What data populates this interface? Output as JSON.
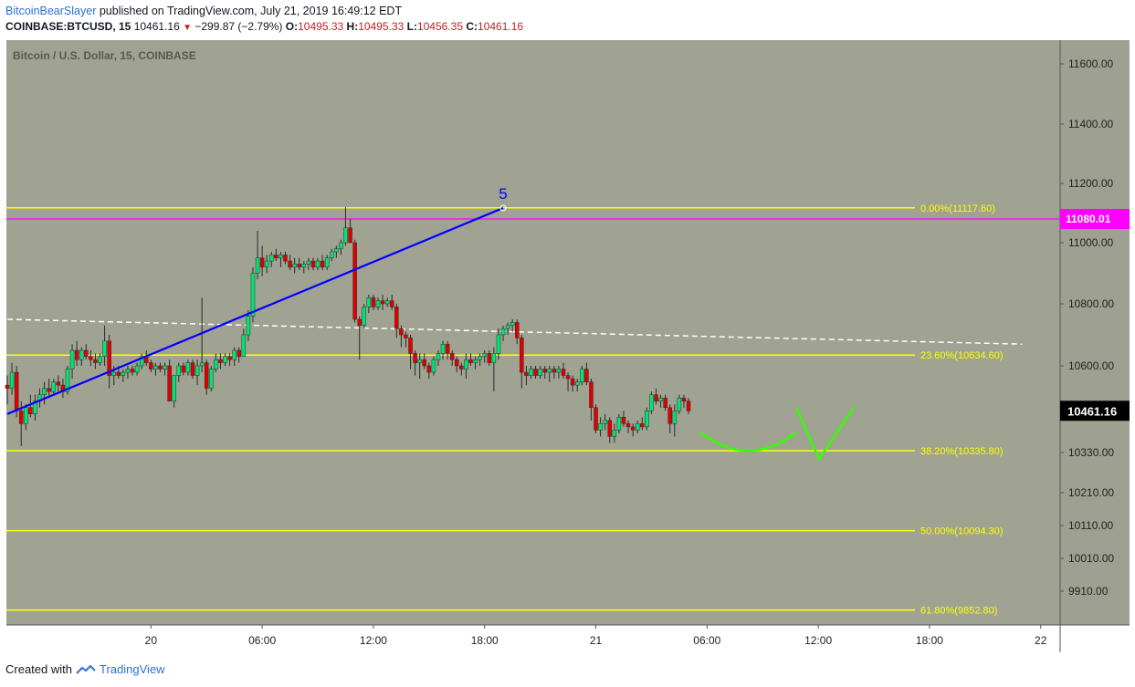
{
  "header": {
    "author": "BitcoinBearSlayer",
    "published": "published on TradingView.com, July 21, 2019 16:49:12 EDT",
    "symbol": "COINBASE:BTCUSD, 15",
    "last": "10461.16",
    "change": "−299.87 (−2.79%)",
    "o_label": "O:",
    "o_value": "10495.33",
    "h_label": "H:",
    "h_value": "10495.33",
    "l_label": "L:",
    "l_value": "10456.35",
    "c_label": "C:",
    "c_value": "10461.16"
  },
  "footer": {
    "created_with": "Created with",
    "brand": "TradingView"
  },
  "colors": {
    "background": "#a0a392",
    "up": "#00e676",
    "down": "#e00000",
    "fib": "#ffff00",
    "magenta": "#ff00ff",
    "trend": "#0000ff",
    "curve": "#33ff00",
    "dashed": "#ffffff",
    "axis_bg": "#9ea091"
  },
  "chart_data": {
    "type": "candlestick",
    "title": "Bitcoin / U.S. Dollar, 15, COINBASE",
    "y_axis_position": "right",
    "x_tick_labels": [
      "20",
      "06:00",
      "12:00",
      "18:00",
      "21",
      "06:00",
      "12:00",
      "18:00",
      "22"
    ],
    "y_tick_labels": [
      "11600.00",
      "11400.00",
      "11200.00",
      "11000.00",
      "10800.00",
      "10600.00",
      "10330.00",
      "10210.00",
      "10110.00",
      "10010.00",
      "9910.00"
    ],
    "price_label": "10461.16",
    "level_label": "11080.01",
    "wave_label": "5",
    "fib_levels": [
      {
        "label": "0.00%(11117.60)",
        "value": 11117.6
      },
      {
        "label": "23.60%(10634.60)",
        "value": 10634.6
      },
      {
        "label": "38.20%(10335.80)",
        "value": 10335.8
      },
      {
        "label": "50.00%(10094.30)",
        "value": 10094.3
      },
      {
        "label": "61.80%(9852.80)",
        "value": 9852.8
      }
    ],
    "horizontal_level": 11080.01,
    "trend_line": {
      "from": {
        "time": "19 Jul 16:15",
        "price": 10450
      },
      "to": {
        "time": "20 Jul 19:00",
        "price": 11117
      }
    },
    "dashed_line": {
      "from": {
        "time": "19 Jul 16:15",
        "price": 10750
      },
      "to": {
        "time": "21 Jul 23:00",
        "price": 10670
      }
    },
    "series": [
      {
        "name": "BTCUSD",
        "candles": [
          [
            10540,
            10570,
            10480,
            10530
          ],
          [
            10530,
            10610,
            10510,
            10580
          ],
          [
            10580,
            10600,
            10440,
            10460
          ],
          [
            10460,
            10490,
            10350,
            10420
          ],
          [
            10420,
            10480,
            10400,
            10470
          ],
          [
            10470,
            10510,
            10440,
            10450
          ],
          [
            10450,
            10510,
            10430,
            10490
          ],
          [
            10490,
            10530,
            10470,
            10510
          ],
          [
            10510,
            10550,
            10480,
            10530
          ],
          [
            10530,
            10560,
            10500,
            10520
          ],
          [
            10520,
            10560,
            10510,
            10550
          ],
          [
            10550,
            10570,
            10520,
            10540
          ],
          [
            10540,
            10560,
            10500,
            10520
          ],
          [
            10520,
            10600,
            10510,
            10590
          ],
          [
            10590,
            10670,
            10560,
            10650
          ],
          [
            10650,
            10680,
            10600,
            10620
          ],
          [
            10620,
            10660,
            10600,
            10650
          ],
          [
            10650,
            10670,
            10620,
            10630
          ],
          [
            10630,
            10650,
            10600,
            10620
          ],
          [
            10620,
            10640,
            10590,
            10610
          ],
          [
            10610,
            10640,
            10600,
            10630
          ],
          [
            10630,
            10730,
            10600,
            10680
          ],
          [
            10680,
            10700,
            10530,
            10570
          ],
          [
            10570,
            10600,
            10540,
            10580
          ],
          [
            10580,
            10600,
            10560,
            10570
          ],
          [
            10570,
            10590,
            10550,
            10580
          ],
          [
            10580,
            10600,
            10560,
            10590
          ],
          [
            10590,
            10600,
            10570,
            10580
          ],
          [
            10580,
            10610,
            10570,
            10600
          ],
          [
            10600,
            10640,
            10590,
            10630
          ],
          [
            10630,
            10650,
            10600,
            10610
          ],
          [
            10610,
            10620,
            10580,
            10590
          ],
          [
            10590,
            10610,
            10570,
            10600
          ],
          [
            10600,
            10610,
            10580,
            10590
          ],
          [
            10590,
            10610,
            10570,
            10600
          ],
          [
            10600,
            10620,
            10490,
            10490
          ],
          [
            10490,
            10570,
            10470,
            10570
          ],
          [
            10570,
            10610,
            10550,
            10600
          ],
          [
            10600,
            10610,
            10570,
            10580
          ],
          [
            10580,
            10620,
            10570,
            10610
          ],
          [
            10610,
            10620,
            10560,
            10570
          ],
          [
            10570,
            10620,
            10540,
            10600
          ],
          [
            10600,
            10820,
            10580,
            10610
          ],
          [
            10610,
            10620,
            10510,
            10530
          ],
          [
            10530,
            10600,
            10520,
            10590
          ],
          [
            10590,
            10640,
            10580,
            10620
          ],
          [
            10620,
            10640,
            10590,
            10610
          ],
          [
            10610,
            10640,
            10600,
            10630
          ],
          [
            10630,
            10640,
            10600,
            10620
          ],
          [
            10620,
            10660,
            10600,
            10650
          ],
          [
            10650,
            10660,
            10610,
            10630
          ],
          [
            10630,
            10720,
            10630,
            10700
          ],
          [
            10700,
            10780,
            10680,
            10760
          ],
          [
            10760,
            10920,
            10740,
            10900
          ],
          [
            10900,
            11040,
            10880,
            10950
          ],
          [
            10950,
            10990,
            10890,
            10920
          ],
          [
            10920,
            10960,
            10900,
            10940
          ],
          [
            10940,
            10970,
            10920,
            10960
          ],
          [
            10960,
            10980,
            10940,
            10950
          ],
          [
            10950,
            10970,
            10920,
            10960
          ],
          [
            10960,
            10970,
            10930,
            10940
          ],
          [
            10940,
            10960,
            10910,
            10920
          ],
          [
            10920,
            10950,
            10900,
            10930
          ],
          [
            10930,
            10950,
            10910,
            10920
          ],
          [
            10920,
            10940,
            10900,
            10930
          ],
          [
            10930,
            10950,
            10910,
            10940
          ],
          [
            10940,
            10950,
            10910,
            10920
          ],
          [
            10920,
            10950,
            10910,
            10940
          ],
          [
            10940,
            10960,
            10910,
            10920
          ],
          [
            10920,
            10960,
            10910,
            10950
          ],
          [
            10950,
            10980,
            10940,
            10970
          ],
          [
            10970,
            10990,
            10950,
            10980
          ],
          [
            10980,
            11010,
            10960,
            11000
          ],
          [
            11000,
            11120,
            10990,
            11050
          ],
          [
            11050,
            11080,
            11000,
            11000
          ],
          [
            11000,
            11010,
            10740,
            10750
          ],
          [
            10750,
            10760,
            10620,
            10730
          ],
          [
            10730,
            10800,
            10720,
            10790
          ],
          [
            10790,
            10830,
            10770,
            10820
          ],
          [
            10820,
            10830,
            10780,
            10790
          ],
          [
            10790,
            10820,
            10780,
            10810
          ],
          [
            10810,
            10830,
            10780,
            10800
          ],
          [
            10800,
            10820,
            10790,
            10810
          ],
          [
            10810,
            10830,
            10780,
            10790
          ],
          [
            10790,
            10800,
            10690,
            10720
          ],
          [
            10720,
            10730,
            10660,
            10700
          ],
          [
            10700,
            10710,
            10660,
            10690
          ],
          [
            10690,
            10700,
            10590,
            10640
          ],
          [
            10640,
            10650,
            10570,
            10610
          ],
          [
            10610,
            10640,
            10560,
            10620
          ],
          [
            10620,
            10640,
            10590,
            10600
          ],
          [
            10600,
            10610,
            10560,
            10580
          ],
          [
            10580,
            10630,
            10570,
            10620
          ],
          [
            10620,
            10650,
            10600,
            10640
          ],
          [
            10640,
            10680,
            10620,
            10670
          ],
          [
            10670,
            10680,
            10620,
            10640
          ],
          [
            10640,
            10650,
            10600,
            10620
          ],
          [
            10620,
            10630,
            10580,
            10600
          ],
          [
            10600,
            10610,
            10570,
            10590
          ],
          [
            10590,
            10640,
            10560,
            10620
          ],
          [
            10620,
            10640,
            10600,
            10610
          ],
          [
            10610,
            10630,
            10590,
            10620
          ],
          [
            10620,
            10640,
            10600,
            10630
          ],
          [
            10630,
            10650,
            10610,
            10640
          ],
          [
            10640,
            10650,
            10600,
            10610
          ],
          [
            10610,
            10660,
            10520,
            10640
          ],
          [
            10640,
            10720,
            10620,
            10700
          ],
          [
            10700,
            10730,
            10680,
            10720
          ],
          [
            10720,
            10740,
            10700,
            10730
          ],
          [
            10730,
            10750,
            10710,
            10740
          ],
          [
            10740,
            10750,
            10670,
            10690
          ],
          [
            10690,
            10700,
            10530,
            10580
          ],
          [
            10580,
            10600,
            10540,
            10570
          ],
          [
            10570,
            10600,
            10560,
            10590
          ],
          [
            10590,
            10600,
            10560,
            10570
          ],
          [
            10570,
            10600,
            10560,
            10590
          ],
          [
            10590,
            10600,
            10560,
            10580
          ],
          [
            10580,
            10600,
            10550,
            10590
          ],
          [
            10590,
            10600,
            10560,
            10580
          ],
          [
            10580,
            10600,
            10560,
            10590
          ],
          [
            10590,
            10610,
            10560,
            10570
          ],
          [
            10570,
            10580,
            10520,
            10560
          ],
          [
            10560,
            10570,
            10520,
            10540
          ],
          [
            10540,
            10560,
            10520,
            10550
          ],
          [
            10550,
            10600,
            10540,
            10590
          ],
          [
            10590,
            10610,
            10540,
            10550
          ],
          [
            10550,
            10560,
            10430,
            10470
          ],
          [
            10470,
            10480,
            10390,
            10400
          ],
          [
            10400,
            10440,
            10380,
            10420
          ],
          [
            10420,
            10450,
            10400,
            10430
          ],
          [
            10430,
            10440,
            10360,
            10380
          ],
          [
            10380,
            10420,
            10360,
            10400
          ],
          [
            10400,
            10450,
            10390,
            10440
          ],
          [
            10440,
            10460,
            10410,
            10420
          ],
          [
            10420,
            10430,
            10390,
            10410
          ],
          [
            10410,
            10420,
            10380,
            10400
          ],
          [
            10400,
            10430,
            10390,
            10420
          ],
          [
            10420,
            10440,
            10400,
            10410
          ],
          [
            10410,
            10470,
            10400,
            10460
          ],
          [
            10460,
            10520,
            10450,
            10510
          ],
          [
            10510,
            10530,
            10480,
            10490
          ],
          [
            10490,
            10510,
            10470,
            10500
          ],
          [
            10500,
            10510,
            10460,
            10470
          ],
          [
            10470,
            10480,
            10390,
            10420
          ],
          [
            10420,
            10480,
            10380,
            10460
          ],
          [
            10460,
            10510,
            10450,
            10500
          ],
          [
            10500,
            10510,
            10470,
            10490
          ],
          [
            10490,
            10500,
            10450,
            10460
          ]
        ]
      }
    ]
  }
}
